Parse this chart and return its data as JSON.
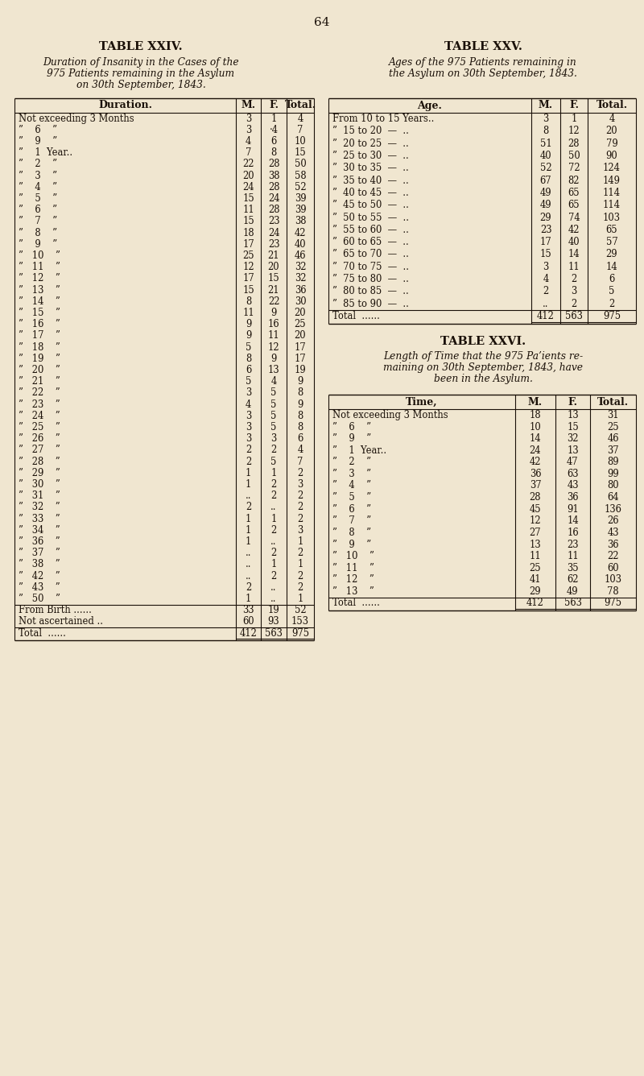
{
  "page_number": "64",
  "bg_color": "#f0e6d0",
  "text_color": "#1a1008",
  "table24_title": "TABLE XXIV.",
  "table24_subtitle": [
    "Duration of Insanity in the Cases of the",
    "975 Patients remaining in the Asylum",
    "on 30th September, 1843."
  ],
  "table24_headers": [
    "Duration.",
    "M.",
    "F.",
    "Total."
  ],
  "table24_rows": [
    [
      "Not exceeding 3 Months",
      "3",
      "1",
      "4"
    ],
    [
      "”    6    ”",
      "3",
      "·4",
      "7"
    ],
    [
      "”    9    ”",
      "4",
      "6",
      "10"
    ],
    [
      "”    1  Year..",
      "7",
      "8",
      "15"
    ],
    [
      "”    2    ”",
      "22",
      "28",
      "50"
    ],
    [
      "”    3    ”",
      "20",
      "38",
      "58"
    ],
    [
      "”    4    ”",
      "24",
      "28",
      "52"
    ],
    [
      "”    5    ”",
      "15",
      "24",
      "39"
    ],
    [
      "”    6    ”",
      "11",
      "28",
      "39"
    ],
    [
      "”    7    ”",
      "15",
      "23",
      "38"
    ],
    [
      "”    8    ”",
      "18",
      "24",
      "42"
    ],
    [
      "”    9    ”",
      "17",
      "23",
      "40"
    ],
    [
      "”   10    ”",
      "25",
      "21",
      "46"
    ],
    [
      "”   11    ”",
      "12",
      "20",
      "32"
    ],
    [
      "”   12    ”",
      "17",
      "15",
      "32"
    ],
    [
      "”   13    ”",
      "15",
      "21",
      "36"
    ],
    [
      "”   14    ”",
      "8",
      "22",
      "30"
    ],
    [
      "”   15    ”",
      "11",
      "9",
      "20"
    ],
    [
      "”   16    ”",
      "9",
      "16",
      "25"
    ],
    [
      "”   17    ”",
      "9",
      "11",
      "20"
    ],
    [
      "”   18    ”",
      "5",
      "12",
      "17"
    ],
    [
      "”   19    ”",
      "8",
      "9",
      "17"
    ],
    [
      "”   20    ”",
      "6",
      "13",
      "19"
    ],
    [
      "”   21    ”",
      "5",
      "4",
      "9"
    ],
    [
      "”   22    ”",
      "3",
      "5",
      "8"
    ],
    [
      "”   23    ”",
      "4",
      "5",
      "9"
    ],
    [
      "”   24    ”",
      "3",
      "5",
      "8"
    ],
    [
      "”   25    ”",
      "3",
      "5",
      "8"
    ],
    [
      "”   26    ”",
      "3",
      "3",
      "6"
    ],
    [
      "”   27    ”",
      "2",
      "2",
      "4"
    ],
    [
      "”   28    ”",
      "2",
      "5",
      "7"
    ],
    [
      "”   29    ”",
      "1",
      "1",
      "2"
    ],
    [
      "”   30    ”",
      "1",
      "2",
      "3"
    ],
    [
      "”   31    ”",
      "..",
      "2",
      "2"
    ],
    [
      "”   32    ”",
      "2",
      "..",
      "2"
    ],
    [
      "”   33    ”",
      "1",
      "1",
      "2"
    ],
    [
      "”   34    ”",
      "1",
      "2",
      "3"
    ],
    [
      "”   36    ”",
      "1",
      "..",
      "1"
    ],
    [
      "”   37    ”",
      "..",
      "2",
      "2"
    ],
    [
      "”   38    ”",
      "..",
      "1",
      "1"
    ],
    [
      "”   42    ”",
      "..",
      "2",
      "2"
    ],
    [
      "”   43    ”",
      "2",
      "..",
      "2"
    ],
    [
      "”   50    ”",
      "1",
      "..",
      "1"
    ],
    [
      "From Birth ......",
      "33",
      "19",
      "52"
    ],
    [
      "Not ascertained ..",
      "60",
      "93",
      "153"
    ],
    [
      "Total  ......",
      "412",
      "563",
      "975"
    ]
  ],
  "table25_title": "TABLE XXV.",
  "table25_subtitle": [
    "Ages of the 975 Patients remaining in",
    "the Asylum on 30th September, 1843."
  ],
  "table25_headers": [
    "Age.",
    "M.",
    "F.",
    "Total."
  ],
  "table25_rows": [
    [
      "From 10 to 15 Years..",
      "3",
      "1",
      "4"
    ],
    [
      "”  15 to 20  —  ..",
      "8",
      "12",
      "20"
    ],
    [
      "”  20 to 25  —  ..",
      "51",
      "28",
      "79"
    ],
    [
      "”  25 to 30  —  ..",
      "40",
      "50",
      "90"
    ],
    [
      "”  30 to 35  —  ..",
      "52",
      "72",
      "124"
    ],
    [
      "”  35 to 40  —  ..",
      "67",
      "82",
      "149"
    ],
    [
      "”  40 to 45  —  ..",
      "49",
      "65",
      "114"
    ],
    [
      "”  45 to 50  —  ..",
      "49",
      "65",
      "114"
    ],
    [
      "”  50 to 55  —  ..",
      "29",
      "74",
      "103"
    ],
    [
      "”  55 to 60  —  ..",
      "23",
      "42",
      "65"
    ],
    [
      "”  60 to 65  —  ..",
      "17",
      "40",
      "57"
    ],
    [
      "”  65 to 70  —  ..",
      "15",
      "14",
      "29"
    ],
    [
      "”  70 to 75  —  ..",
      "3",
      "11",
      "14"
    ],
    [
      "”  75 to 80  —  ..",
      "4",
      "2",
      "6"
    ],
    [
      "”  80 to 85  —  ..",
      "2",
      "3",
      "5"
    ],
    [
      "”  85 to 90  —  ..",
      "..",
      "2",
      "2"
    ],
    [
      "Total  ......",
      "412",
      "563",
      "975"
    ]
  ],
  "table26_title": "TABLE XXVI.",
  "table26_subtitle": [
    "Length of Time that the 975 Pa’ients re-",
    "maining on 30th September, 1843, have",
    "been in the Asylum."
  ],
  "table26_headers": [
    "Time,",
    "M.",
    "F.",
    "Total."
  ],
  "table26_rows": [
    [
      "Not exceeding 3 Months",
      "18",
      "13",
      "31"
    ],
    [
      "”    6    ”",
      "10",
      "15",
      "25"
    ],
    [
      "”    9    ”",
      "14",
      "32",
      "46"
    ],
    [
      "”    1  Year..",
      "24",
      "13",
      "37"
    ],
    [
      "”    2    ”",
      "42",
      "47",
      "89"
    ],
    [
      "”    3    ”",
      "36",
      "63",
      "99"
    ],
    [
      "”    4    ”",
      "37",
      "43",
      "80"
    ],
    [
      "”    5    ”",
      "28",
      "36",
      "64"
    ],
    [
      "”    6    ”",
      "45",
      "91",
      "136"
    ],
    [
      "”    7    ”",
      "12",
      "14",
      "26"
    ],
    [
      "”    8    ”",
      "27",
      "16",
      "43"
    ],
    [
      "”    9    ”",
      "13",
      "23",
      "36"
    ],
    [
      "”   10    ”",
      "11",
      "11",
      "22"
    ],
    [
      "”   11    ”",
      "25",
      "35",
      "60"
    ],
    [
      "”   12    ”",
      "41",
      "62",
      "103"
    ],
    [
      "”   13    ”",
      "29",
      "49",
      "78"
    ],
    [
      "Total  ......",
      "412",
      "563",
      "975"
    ]
  ]
}
